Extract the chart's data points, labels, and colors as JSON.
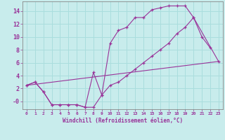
{
  "xlabel": "Windchill (Refroidissement éolien,°C)",
  "bg_color": "#c8ecec",
  "line_color": "#993399",
  "grid_color": "#aadddd",
  "spine_color": "#888888",
  "xlim": [
    -0.5,
    23.5
  ],
  "ylim": [
    -1.2,
    15.5
  ],
  "xticks": [
    0,
    1,
    2,
    3,
    4,
    5,
    6,
    7,
    8,
    9,
    10,
    11,
    12,
    13,
    14,
    15,
    16,
    17,
    18,
    19,
    20,
    21,
    22,
    23
  ],
  "yticks": [
    0,
    2,
    4,
    6,
    8,
    10,
    12,
    14
  ],
  "ytick_labels": [
    "-0",
    "2",
    "4",
    "6",
    "8",
    "10",
    "12",
    "14"
  ],
  "curve1_x": [
    0,
    1,
    2,
    3,
    4,
    5,
    6,
    7,
    8,
    9,
    10,
    11,
    12,
    13,
    14,
    15,
    16,
    17,
    18,
    19,
    20,
    21,
    22
  ],
  "curve1_y": [
    2.5,
    3.0,
    1.5,
    -0.5,
    -0.5,
    -0.5,
    -0.5,
    -0.9,
    4.5,
    1.0,
    9.0,
    11.0,
    11.5,
    13.0,
    13.0,
    14.2,
    14.5,
    14.8,
    14.8,
    14.8,
    13.0,
    10.0,
    8.3
  ],
  "curve2_x": [
    0,
    1,
    2,
    3,
    4,
    5,
    6,
    7,
    8,
    9,
    10,
    11,
    12,
    13,
    14,
    15,
    16,
    17,
    18,
    19,
    20,
    23
  ],
  "curve2_y": [
    2.5,
    3.0,
    1.5,
    -0.5,
    -0.5,
    -0.5,
    -0.5,
    -0.9,
    -0.9,
    1.0,
    2.5,
    3.0,
    4.0,
    5.0,
    6.0,
    7.0,
    8.0,
    9.0,
    10.5,
    11.5,
    13.0,
    6.2
  ],
  "curve3_x": [
    0,
    23
  ],
  "curve3_y": [
    2.5,
    6.2
  ]
}
